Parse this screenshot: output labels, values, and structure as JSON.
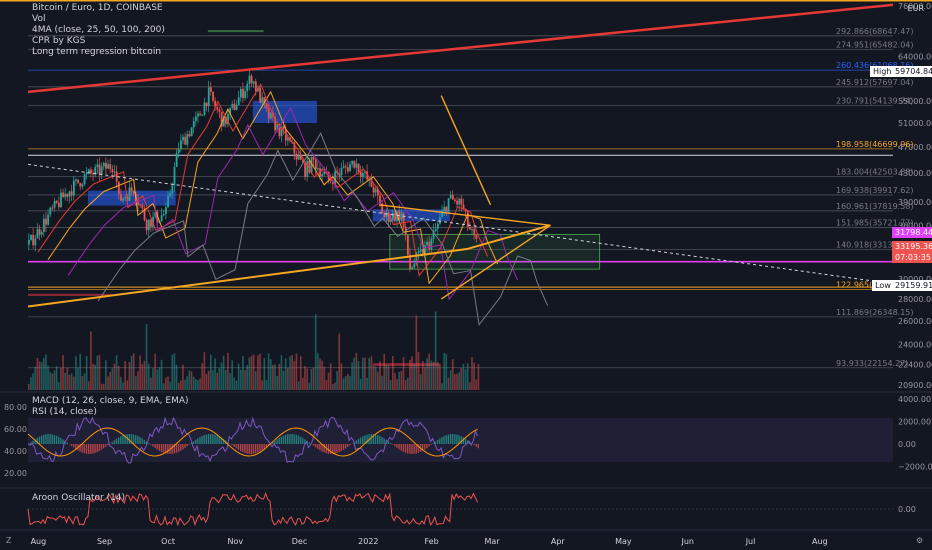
{
  "symbol": {
    "title": "Bitcoin / Euro, 1D, COINBASE",
    "currency": "EUR",
    "indicators": [
      "Vol",
      "4MA (close, 25, 50, 100, 200)",
      "CPR by KGS",
      "Long term regression bitcoin"
    ],
    "macd_label": "MACD (12, 26, close, 9, EMA, EMA)",
    "rsi_label": "RSI (14, close)",
    "aroon_label": "Aroon Oscillator (14)"
  },
  "price_tags": {
    "high_label": "High",
    "high_value": "59704.84",
    "last_value": "31798.44",
    "current_value": "33195.36",
    "countdown": "07:03:35",
    "low_label": "Low",
    "low_value": "29159.91"
  },
  "colors": {
    "background": "#131722",
    "bull": "#26a69a",
    "bear": "#ef5350",
    "regression": "#e53935",
    "trend": "#f5a623",
    "magenta": "#e040fb",
    "cpr_blue": "#2962ff",
    "cpr_green": "#4caf50",
    "cpr_red": "#f23645"
  },
  "corner_buttons": [
    "Z",
    "⚙"
  ],
  "chart_data": [
    {
      "type": "candlestick",
      "title": "Bitcoin / Euro, 1D, COINBASE",
      "y_scale": "log",
      "ylim": [
        20400,
        76500
      ],
      "y_ticks": [
        20900,
        22400,
        24000,
        26000,
        28000,
        30000,
        33000,
        36000,
        39000,
        43000,
        47000,
        51000,
        55000,
        59704.84,
        64000,
        76000
      ],
      "y_tick_labels": [
        "20900.00",
        "22400.00",
        "24000.00",
        "26000.00",
        "28000.00",
        "30000.00",
        "33000.00",
        "36000.00",
        "39000.00",
        "43000.00",
        "47000.00",
        "51000.00",
        "55000.00",
        "",
        "64000.00",
        "76000.00"
      ],
      "x_range": [
        "2021-07-28",
        "2022-09-05"
      ],
      "x_ticks": [
        "2021-08-01",
        "2021-09-01",
        "2021-10-01",
        "2021-11-01",
        "2021-12-01",
        "2022-01-01",
        "2022-02-01",
        "2022-03-01",
        "2022-04-01",
        "2022-05-01",
        "2022-06-01",
        "2022-07-01",
        "2022-08-01"
      ],
      "x_tick_labels": [
        "Aug",
        "Sep",
        "Oct",
        "Nov",
        "Dec",
        "2022",
        "Feb",
        "Mar",
        "Apr",
        "May",
        "Jun",
        "Jul",
        "Aug"
      ],
      "price_path": [
        [
          "2021-07-28",
          33700
        ],
        [
          "2021-08-07",
          37500
        ],
        [
          "2021-08-14",
          40000
        ],
        [
          "2021-08-23",
          42500
        ],
        [
          "2021-09-06",
          44300
        ],
        [
          "2021-09-08",
          39200
        ],
        [
          "2021-09-15",
          40800
        ],
        [
          "2021-09-21",
          36300
        ],
        [
          "2021-09-30",
          37500
        ],
        [
          "2021-10-06",
          47000
        ],
        [
          "2021-10-15",
          51800
        ],
        [
          "2021-10-20",
          56300
        ],
        [
          "2021-10-27",
          50900
        ],
        [
          "2021-11-09",
          59700
        ],
        [
          "2021-11-16",
          52600
        ],
        [
          "2021-11-26",
          48000
        ],
        [
          "2021-12-04",
          43500
        ],
        [
          "2021-12-08",
          44700
        ],
        [
          "2021-12-15",
          42000
        ],
        [
          "2021-12-27",
          44700
        ],
        [
          "2022-01-05",
          40800
        ],
        [
          "2022-01-10",
          37000
        ],
        [
          "2022-01-18",
          37400
        ],
        [
          "2022-01-22",
          31100
        ],
        [
          "2022-01-27",
          32600
        ],
        [
          "2022-02-01",
          34200
        ],
        [
          "2022-02-09",
          39300
        ],
        [
          "2022-02-15",
          38700
        ],
        [
          "2022-02-18",
          36000
        ],
        [
          "2022-02-23",
          33195
        ]
      ],
      "price_levels": [
        {
          "label": "292.866(68647.47)",
          "price": 68647.47
        },
        {
          "label": "274.951(65482.04)",
          "price": 65482.04
        },
        {
          "label": "260.436(61068.16)",
          "price": 61068.16
        },
        {
          "label": "245.912(57697.04)",
          "price": 57697.04
        },
        {
          "label": "230.791(54139.74)",
          "price": 54139.74
        },
        {
          "label": "198.958(46699.96)",
          "price": 46699.96
        },
        {
          "label": "183.004(42503.88)",
          "price": 42503.88
        },
        {
          "label": "169.938(39917.62)",
          "price": 39917.62
        },
        {
          "label": "160.961(37819.58)",
          "price": 37819.58
        },
        {
          "label": "151.985(35721.77)",
          "price": 35721.77
        },
        {
          "label": "140.918(33135.27)",
          "price": 33135.27
        },
        {
          "label": "122.965(28937)",
          "price": 28937
        },
        {
          "label": "111.869(26348.15)",
          "price": 26348.15
        },
        {
          "label": "93.933(22154.27)",
          "price": 22154.27
        }
      ],
      "regression_line": [
        [
          "2021-07-28",
          56700
        ],
        [
          "2022-09-05",
          76300
        ]
      ],
      "descending_trendline": [
        [
          "2021-07-28",
          44300
        ],
        [
          "2022-09-05",
          29500
        ]
      ],
      "ascending_support": [
        [
          "2021-07-28",
          27300
        ],
        [
          "2022-02-18",
          33200
        ],
        [
          "2022-03-29",
          36000
        ]
      ],
      "triangle": [
        [
          "2022-01-08",
          38600
        ],
        [
          "2022-03-29",
          36000
        ],
        [
          "2022-02-06",
          28000
        ]
      ],
      "projection_lines": [
        [
          [
            "2022-02-06",
            56000
          ],
          [
            "2022-03-01",
            38600
          ]
        ],
        [
          [
            "2022-02-06",
            28000
          ],
          [
            "2022-03-29",
            36000
          ]
        ]
      ],
      "projection_box": [
        [
          "2022-01-13",
          34900
        ],
        [
          "2022-04-21",
          31000
        ]
      ],
      "horizontal_lines": [
        31798.44,
        45700,
        29159.91
      ],
      "level_colors": {
        "orange": [
          46699.96,
          28937
        ],
        "red": [
          61068.16
        ]
      }
    },
    {
      "type": "bar",
      "name": "Vol",
      "note": "volume histogram overlay",
      "x_range": [
        "2021-07-28",
        "2022-02-23"
      ]
    },
    {
      "type": "line",
      "name": "MACD / RSI",
      "left_axis_ticks": [
        80,
        60,
        40,
        20
      ],
      "left_axis_labels": [
        "80.00",
        "60.00",
        "40.00",
        "20.00"
      ],
      "right_axis_ticks": [
        4000,
        2000,
        0,
        -2000
      ],
      "right_axis_labels": [
        "4000.00",
        "2000.00",
        "0.00",
        "−2000.00"
      ],
      "rsi_band": [
        30,
        70
      ]
    },
    {
      "type": "area",
      "name": "Aroon Oscillator (14)",
      "right_axis_labels": [
        "0.00"
      ]
    }
  ]
}
